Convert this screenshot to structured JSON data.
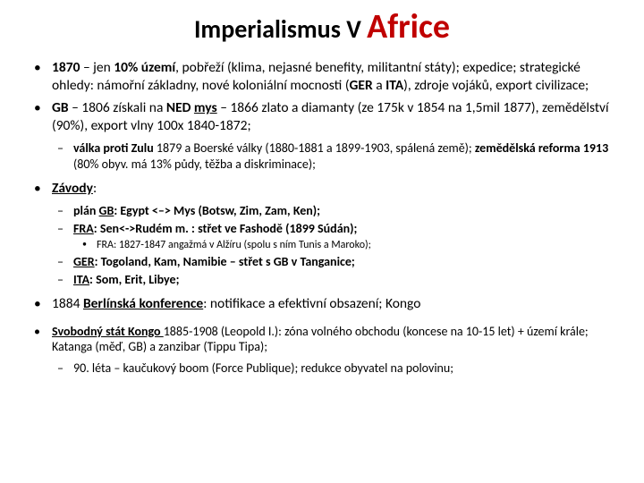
{
  "title": {
    "part1": "Imperialismus ",
    "part2": "V ",
    "part3": "Africe"
  },
  "colors": {
    "accent_red": "#c00000",
    "text": "#000000",
    "bg": "#ffffff"
  },
  "fonts": {
    "family": "Calibri, Arial, sans-serif",
    "title1_size": 28,
    "title3_size": 38,
    "lvl1_size": 15.5,
    "lvl2_size": 14,
    "lvl3_size": 12
  },
  "b1": {
    "a": "1870",
    "b": " – jen ",
    "c": "10% území",
    "d": ", pobřeží (klima, nejasné benefity, militantní státy); expedice; strategické ohledy: námořní základny, nové koloniální mocnosti (",
    "e": "GER ",
    "f": "a ",
    "g": "ITA",
    "h": "), zdroje vojáků, export civilizace;"
  },
  "b2": {
    "a": "GB",
    "b": " – 1806 získali na ",
    "c": "NED ",
    "d": "mys",
    "e": " – 1866 zlato a diamanty (ze 175k v 1854 na 1,5mil 1877), zemědělství (90%), export vlny 100x 1840-1872;"
  },
  "b2s1": {
    "a": "válka proti Zulu ",
    "b": "1879 a Boerské války (1880-1881 a 1899-1903, spálená země); ",
    "c": "zemědělská reforma 1913 ",
    "d": "(80% obyv. má 13% půdy, těžba a diskriminace);"
  },
  "b3": {
    "a": "Závody",
    "b": ":"
  },
  "b3s1": {
    "a": "plán ",
    "b": "GB",
    "c": ": Egypt <–> Mys (Botsw, Zim, Zam, Ken);"
  },
  "b3s2": {
    "a": "FRA",
    "b": ": Sen<->Rudém m. : střet ve Fashodě (1899 Súdán);"
  },
  "b3s2x1": "FRA: 1827-1847 angažmá v Alžíru (spolu s ním Tunis a Maroko);",
  "b3s3": {
    "a": "GER",
    "b": ": Togoland, Kam, Namibie – střet s GB v Tanganice;"
  },
  "b3s4": {
    "a": "ITA",
    "b": ": Som, Erit, Libye;"
  },
  "b4": {
    "a": "1884 ",
    "b": "Berlínská konference",
    "c": ": notifikace a efektivní obsazení; Kongo"
  },
  "b5": {
    "a": "Svobodný stát Kongo ",
    "b": "1885-1908 (Leopold I.): zóna volného obchodu (koncese na 10-15 let) + území krále; Katanga (měď, GB) a zanzibar (Tippu Tipa);"
  },
  "b5s1": "90. léta – kaučukový boom (Force Publique); redukce obyvatel na polovinu;"
}
